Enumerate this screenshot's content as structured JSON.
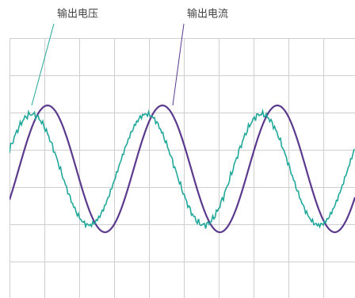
{
  "labels": {
    "voltage": "输出电压",
    "current": "输出电流"
  }
}
